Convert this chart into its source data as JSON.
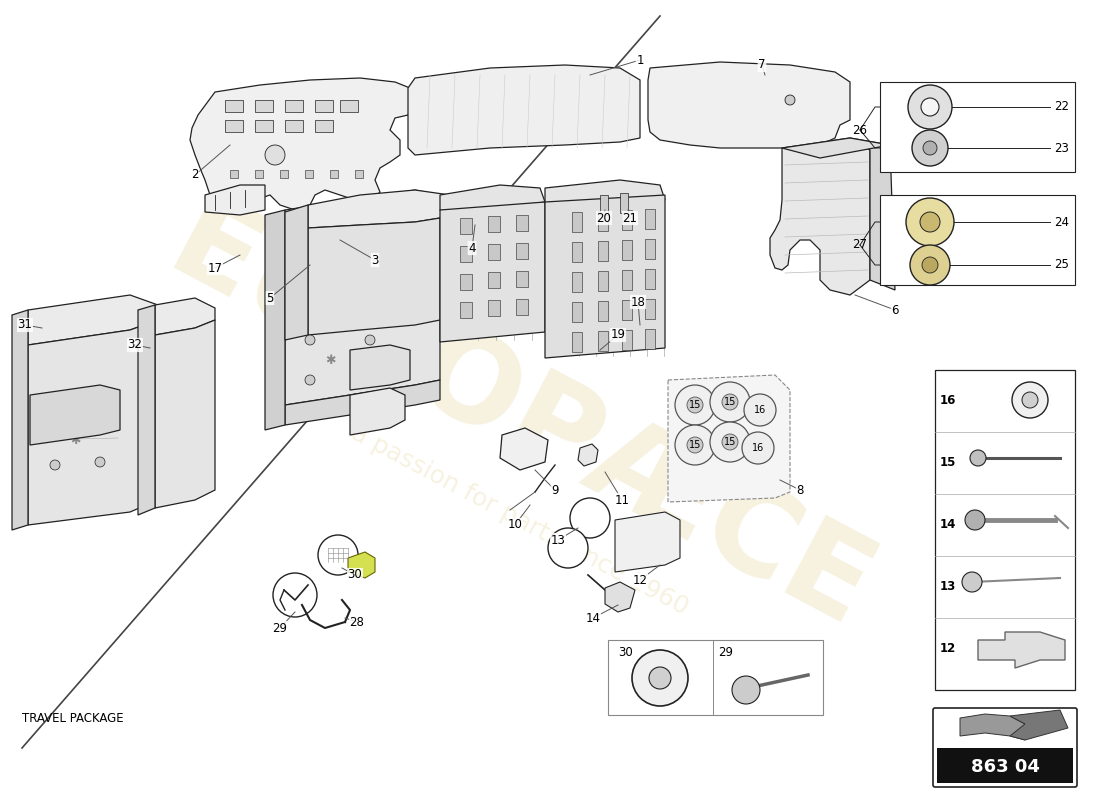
{
  "bg": "#ffffff",
  "line_col": "#222222",
  "fill_light": "#f2f2f2",
  "fill_mid": "#e8e8e8",
  "fill_dark": "#d8d8d8",
  "fill_side": "#dddddd",
  "wm_col": "#c8a830",
  "wm_alpha": 0.18,
  "part_number": "863 04",
  "travel_package": "TRAVEL PACKAGE",
  "label_font": 8.0,
  "diag_line": [
    [
      0.02,
      0.935
    ],
    [
      0.6,
      0.02
    ]
  ]
}
